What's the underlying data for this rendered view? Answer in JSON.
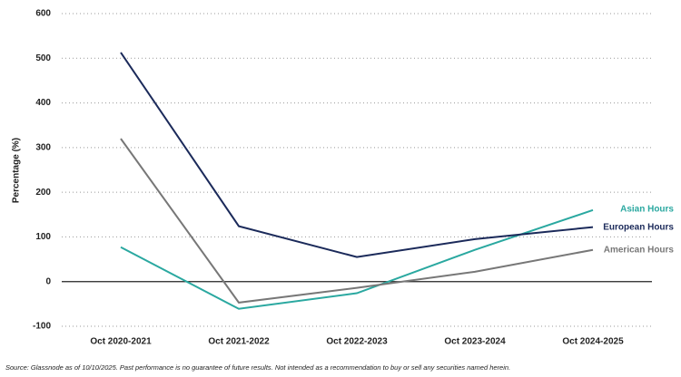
{
  "chart_data": {
    "type": "line",
    "y_label": "Percentage (%)",
    "categories": [
      "Oct 2020-2021",
      "Oct 2021-2022",
      "Oct 2022-2023",
      "Oct 2023-2024",
      "Oct 2024-2025"
    ],
    "series": [
      {
        "name": "Asian Hours",
        "color": "#2aa8a0",
        "values": [
          77,
          -61,
          -26,
          71,
          160
        ]
      },
      {
        "name": "European Hours",
        "color": "#1b2a5a",
        "values": [
          513,
          124,
          55,
          95,
          122
        ]
      },
      {
        "name": "American Hours",
        "color": "#777777",
        "values": [
          320,
          -47,
          -14,
          22,
          71
        ]
      }
    ],
    "ylim": [
      -100,
      600
    ],
    "yticks": [
      -100,
      0,
      100,
      200,
      300,
      400,
      500,
      600
    ],
    "grid": true,
    "source": "Source: Glassnode as of 10/10/2025. Past performance is no guarantee of future results. Not intended as a recommendation to buy or sell any securities named herein."
  }
}
